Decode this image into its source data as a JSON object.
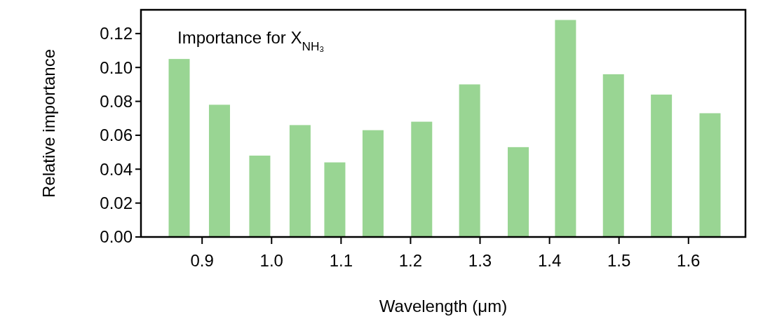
{
  "chart_data": {
    "type": "bar",
    "xlabel": "Wavelength (μm)",
    "ylabel": "Relative importance",
    "annotations": [
      "Importance for X$_{NH₃}$"
    ],
    "x": [
      0.867,
      0.925,
      0.983,
      1.041,
      1.091,
      1.146,
      1.216,
      1.285,
      1.355,
      1.423,
      1.492,
      1.561,
      1.631
    ],
    "values": [
      0.105,
      0.078,
      0.048,
      0.066,
      0.044,
      0.063,
      0.068,
      0.09,
      0.053,
      0.128,
      0.096,
      0.084,
      0.073
    ],
    "color": "#99d593",
    "xlim": [
      0.812,
      1.682
    ],
    "xticks": [
      {
        "value": 0.9,
        "label": "0.9"
      },
      {
        "value": 1.0,
        "label": "1.0"
      },
      {
        "value": 1.1,
        "label": "1.1"
      },
      {
        "value": 1.2,
        "label": "1.2"
      },
      {
        "value": 1.3,
        "label": "1.3"
      },
      {
        "value": 1.4,
        "label": "1.4"
      },
      {
        "value": 1.5,
        "label": "1.5"
      },
      {
        "value": 1.6,
        "label": "1.6"
      }
    ],
    "ylim": [
      0,
      0.134
    ],
    "yticks": [
      {
        "value": 0,
        "label": "0.00"
      },
      {
        "value": 0.02,
        "label": "0.02"
      },
      {
        "value": 0.04,
        "label": "0.04"
      },
      {
        "value": 0.06,
        "label": "0.06"
      },
      {
        "value": 0.08,
        "label": "0.08"
      },
      {
        "value": 0.1,
        "label": "0.10"
      },
      {
        "value": 0.12,
        "label": "0.12"
      }
    ],
    "grid": false
  }
}
